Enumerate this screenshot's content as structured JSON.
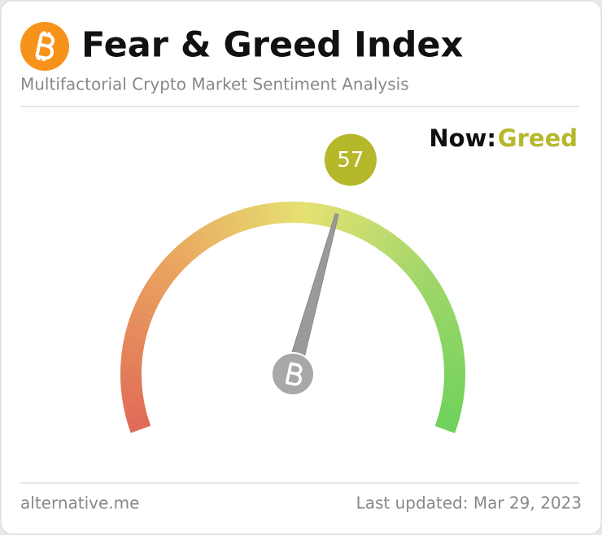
{
  "chart_data": {
    "type": "gauge",
    "title": "Fear & Greed Index",
    "subtitle": "Multifactorial Crypto Market Sentiment Analysis",
    "value": 57,
    "ylim": [
      0,
      100
    ],
    "status_label": "Now:",
    "classification": "Greed",
    "classification_color": "#b5b82a",
    "source": "alternative.me",
    "updated": "Last updated: Mar 29, 2023"
  }
}
